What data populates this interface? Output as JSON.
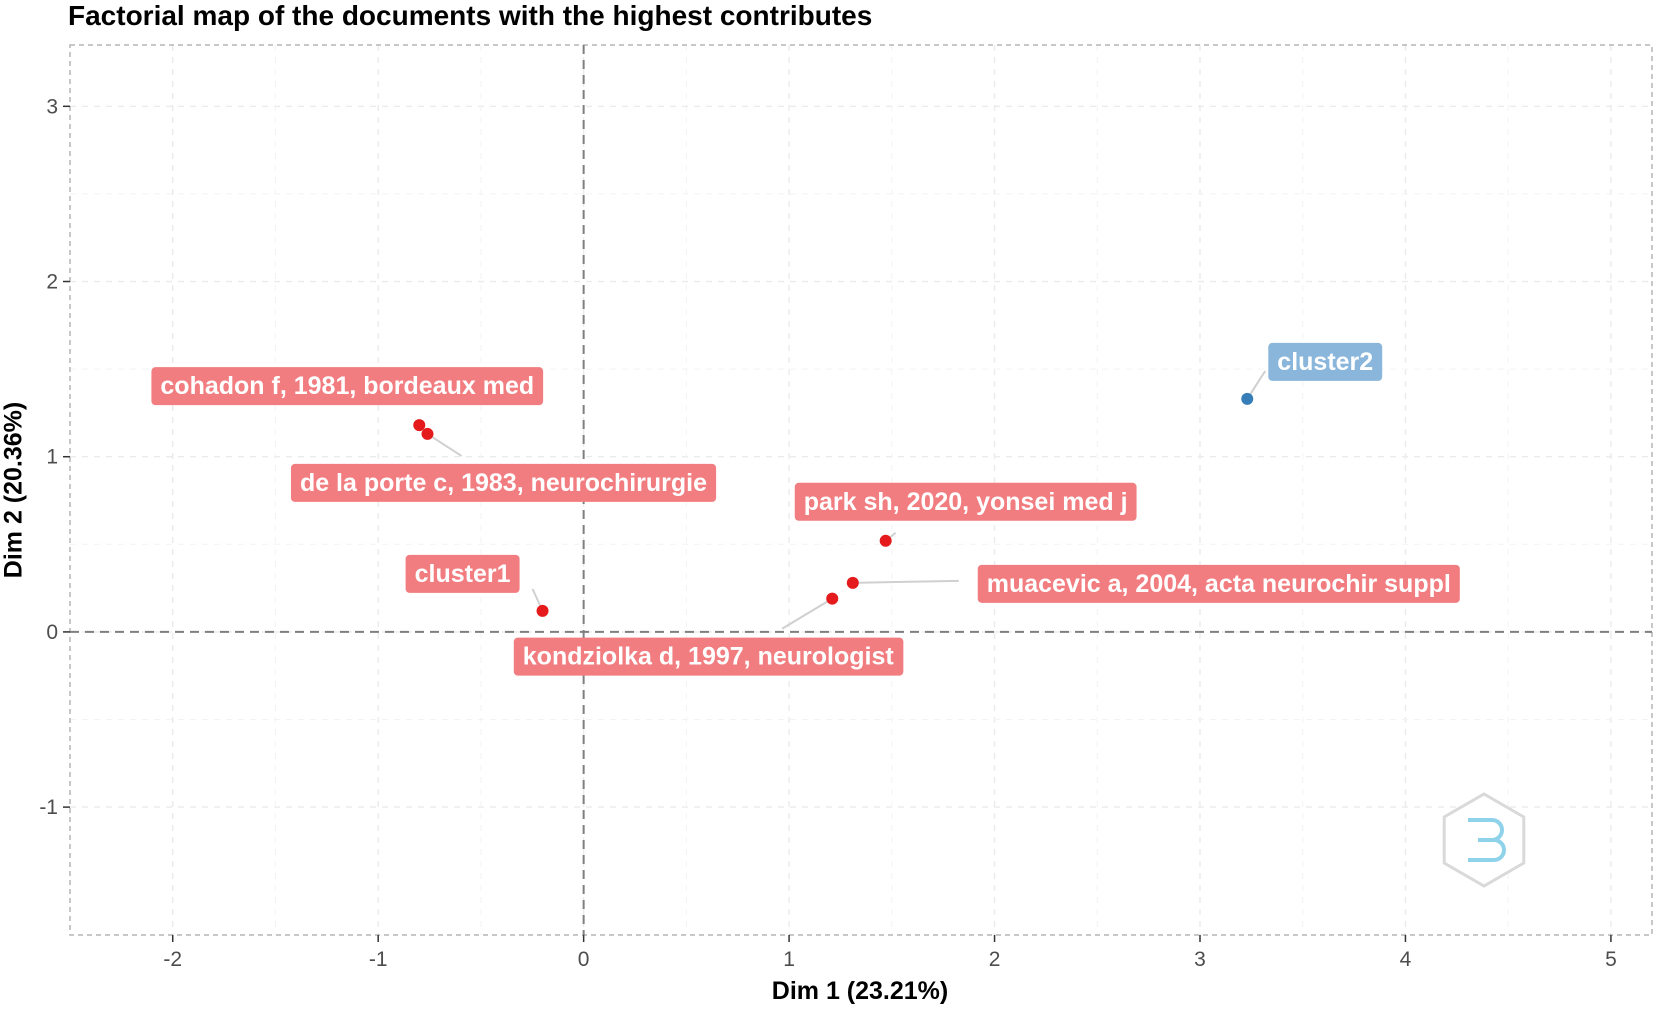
{
  "chart_data": {
    "type": "scatter",
    "title": "Factorial map of the documents with the highest contributes",
    "xlabel": "Dim 1 (23.21%)",
    "ylabel": "Dim 2 (20.36%)",
    "xlim": [
      -2.5,
      5.2
    ],
    "ylim": [
      -1.73,
      3.35
    ],
    "xticks": [
      -2,
      -1,
      0,
      1,
      2,
      3,
      4,
      5
    ],
    "yticks": [
      -1,
      0,
      1,
      2,
      3
    ],
    "xtick_labels": [
      "-2",
      "-1",
      "0",
      "1",
      "2",
      "3",
      "4",
      "5"
    ],
    "ytick_labels": [
      "-1",
      "0",
      "1",
      "2",
      "3"
    ],
    "grid": true,
    "reference_lines": {
      "x": 0,
      "y": 0,
      "style": "dashed"
    },
    "colors": {
      "cluster1": "#e41a1c",
      "cluster2": "#377eb8",
      "label_cluster1": "#f27d80",
      "label_cluster2": "#8ab6dc"
    },
    "points": [
      {
        "label": "cohadon f, 1981, bordeaux med",
        "x": -0.8,
        "y": 1.18,
        "cluster": 1
      },
      {
        "label": "de la porte c, 1983, neurochirurgie",
        "x": -0.76,
        "y": 1.13,
        "cluster": 1
      },
      {
        "label": "cluster1",
        "x": -0.2,
        "y": 0.12,
        "cluster": 1
      },
      {
        "label": "park sh, 2020, yonsei med j",
        "x": 1.47,
        "y": 0.52,
        "cluster": 1
      },
      {
        "label": "muacevic a, 2004, acta neurochir suppl",
        "x": 1.31,
        "y": 0.28,
        "cluster": 1
      },
      {
        "label": "kondziolka d, 1997, neurologist",
        "x": 1.21,
        "y": 0.19,
        "cluster": 1
      },
      {
        "label": "cluster2",
        "x": 3.23,
        "y": 1.33,
        "cluster": 2
      }
    ]
  }
}
